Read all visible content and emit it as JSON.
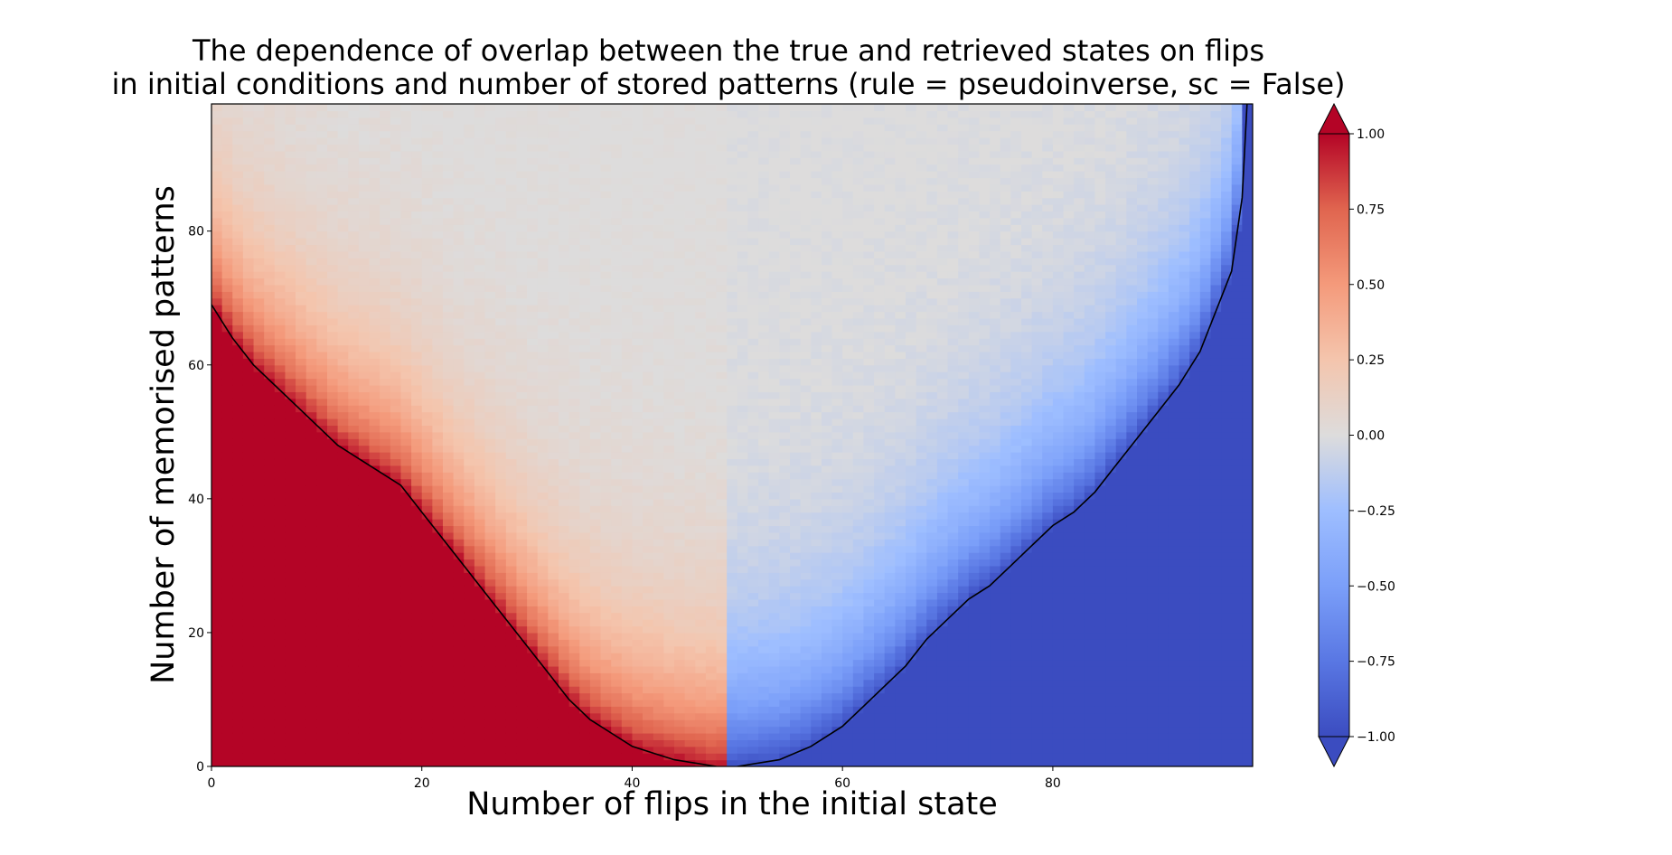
{
  "chart_data": {
    "type": "heatmap",
    "title_lines": [
      "The dependence of overlap between the true and retrieved states on flips",
      "in initial conditions and number of stored patterns (rule = pseudoinverse, sc = False)"
    ],
    "xlabel": "Number of flips in the initial state",
    "ylabel": "Number of memorised patterns",
    "xlim": [
      0,
      99
    ],
    "ylim": [
      0,
      99
    ],
    "x_ticks": [
      0,
      20,
      40,
      60,
      80
    ],
    "y_ticks": [
      0,
      20,
      40,
      60,
      80
    ],
    "x_tick_labels": [
      "0",
      "20",
      "40",
      "60",
      "80"
    ],
    "y_tick_labels": [
      "0",
      "20",
      "40",
      "60",
      "80"
    ],
    "colormap": "coolwarm",
    "color_range": [
      -1.0,
      1.0
    ],
    "colorbar_ticks": [
      1.0,
      0.75,
      0.5,
      0.25,
      0.0,
      -0.25,
      -0.5,
      -0.75,
      -1.0
    ],
    "colorbar_tick_labels": [
      "1.00",
      "0.75",
      "0.50",
      "0.25",
      "0.00",
      "−0.25",
      "−0.50",
      "−0.75",
      "−1.00"
    ],
    "colorbar_extend": "both",
    "contour_level": "boundary of saturated regions (|overlap| ≈ 1)",
    "left_boundary": [
      [
        0,
        69
      ],
      [
        2,
        64
      ],
      [
        4,
        60
      ],
      [
        6,
        57
      ],
      [
        8,
        54
      ],
      [
        10,
        51
      ],
      [
        12,
        48
      ],
      [
        14,
        46
      ],
      [
        16,
        44
      ],
      [
        18,
        42
      ],
      [
        20,
        38
      ],
      [
        22,
        34
      ],
      [
        24,
        30
      ],
      [
        26,
        26
      ],
      [
        28,
        22
      ],
      [
        30,
        18
      ],
      [
        32,
        14
      ],
      [
        34,
        10
      ],
      [
        36,
        7
      ],
      [
        38,
        5
      ],
      [
        40,
        3
      ],
      [
        42,
        2
      ],
      [
        44,
        1
      ],
      [
        46,
        0.5
      ],
      [
        48,
        0
      ]
    ],
    "right_boundary": [
      [
        50,
        0
      ],
      [
        54,
        1
      ],
      [
        57,
        3
      ],
      [
        60,
        6
      ],
      [
        62,
        9
      ],
      [
        64,
        12
      ],
      [
        66,
        15
      ],
      [
        68,
        19
      ],
      [
        70,
        22
      ],
      [
        72,
        25
      ],
      [
        74,
        27
      ],
      [
        76,
        30
      ],
      [
        78,
        33
      ],
      [
        80,
        36
      ],
      [
        82,
        38
      ],
      [
        84,
        41
      ],
      [
        86,
        45
      ],
      [
        88,
        49
      ],
      [
        90,
        53
      ],
      [
        92,
        57
      ],
      [
        94,
        62
      ],
      [
        96,
        70
      ],
      [
        97,
        74
      ],
      [
        98,
        85
      ],
      [
        98.5,
        100
      ]
    ],
    "colors": {
      "positive": "#b40426",
      "negative": "#3b4cc0",
      "neutral": "#dddcdc",
      "contour": "#000000"
    }
  }
}
